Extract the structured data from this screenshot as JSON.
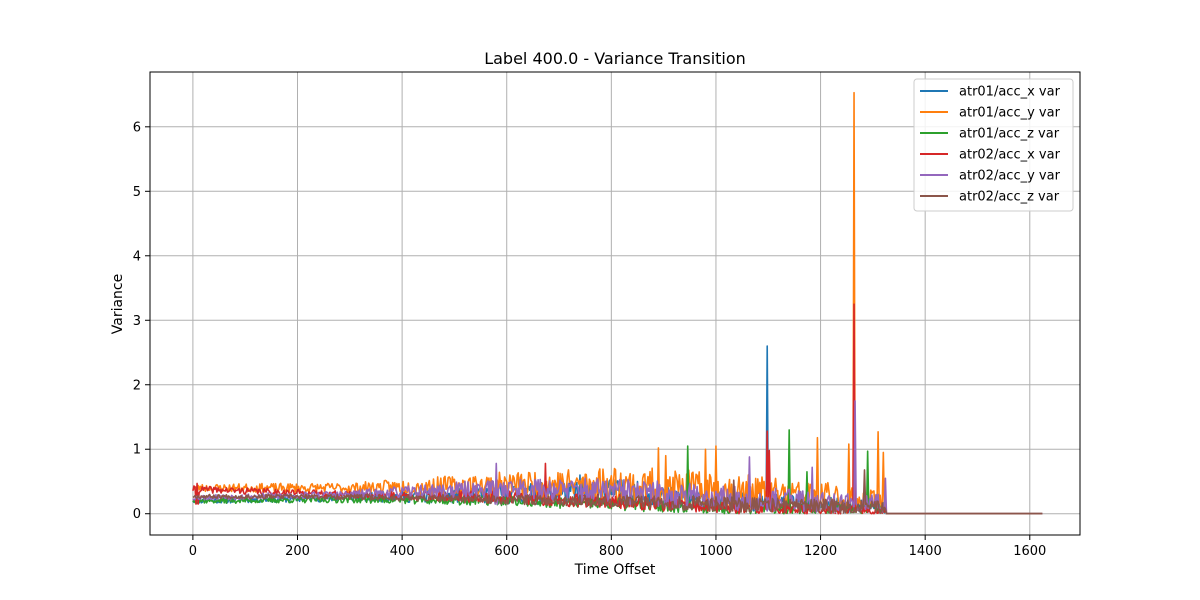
{
  "chart_data": {
    "type": "line",
    "title": "Label 400.0 - Variance Transition",
    "xlabel": "Time Offset",
    "ylabel": "Variance",
    "xlim": [
      -82,
      1696
    ],
    "ylim": [
      -0.33,
      6.85
    ],
    "xticks": [
      0,
      200,
      400,
      600,
      800,
      1000,
      1200,
      1400,
      1600
    ],
    "yticks": [
      0,
      1,
      2,
      3,
      4,
      5,
      6
    ],
    "grid": true,
    "legend_position": "top-right",
    "x_end": 1625,
    "noise_cutoff": 1325,
    "series": [
      {
        "name": "atr01/acc_x var",
        "color": "#1f77b4",
        "seed": 11,
        "envelope": [
          [
            0,
            0.2
          ],
          [
            300,
            0.25
          ],
          [
            600,
            0.3
          ],
          [
            800,
            0.35
          ],
          [
            1000,
            0.2
          ],
          [
            1325,
            0.1
          ]
        ],
        "noise": [
          [
            0,
            0.04
          ],
          [
            300,
            0.06
          ],
          [
            600,
            0.15
          ],
          [
            800,
            0.2
          ],
          [
            1000,
            0.15
          ],
          [
            1325,
            0.1
          ]
        ],
        "spikes": [
          [
            740,
            0.6
          ],
          [
            1098,
            2.6
          ]
        ]
      },
      {
        "name": "atr01/acc_y var",
        "color": "#ff7f0e",
        "seed": 23,
        "envelope": [
          [
            0,
            0.4
          ],
          [
            300,
            0.4
          ],
          [
            600,
            0.45
          ],
          [
            800,
            0.45
          ],
          [
            1000,
            0.35
          ],
          [
            1325,
            0.2
          ]
        ],
        "noise": [
          [
            0,
            0.06
          ],
          [
            300,
            0.08
          ],
          [
            600,
            0.2
          ],
          [
            800,
            0.3
          ],
          [
            1000,
            0.3
          ],
          [
            1325,
            0.2
          ]
        ],
        "spikes": [
          [
            890,
            1.02
          ],
          [
            905,
            0.9
          ],
          [
            980,
            1.0
          ],
          [
            1000,
            1.05
          ],
          [
            1195,
            1.18
          ],
          [
            1255,
            1.08
          ],
          [
            1265,
            6.53
          ],
          [
            1310,
            1.27
          ],
          [
            1320,
            0.95
          ]
        ]
      },
      {
        "name": "atr01/acc_z var",
        "color": "#2ca02c",
        "seed": 37,
        "envelope": [
          [
            0,
            0.2
          ],
          [
            300,
            0.22
          ],
          [
            600,
            0.2
          ],
          [
            800,
            0.15
          ],
          [
            1000,
            0.1
          ],
          [
            1325,
            0.08
          ]
        ],
        "noise": [
          [
            0,
            0.04
          ],
          [
            300,
            0.05
          ],
          [
            600,
            0.08
          ],
          [
            800,
            0.1
          ],
          [
            1000,
            0.1
          ],
          [
            1325,
            0.08
          ]
        ],
        "spikes": [
          [
            947,
            1.05
          ],
          [
            1140,
            1.3
          ],
          [
            1175,
            0.65
          ],
          [
            1290,
            0.97
          ]
        ]
      },
      {
        "name": "atr02/acc_x var",
        "color": "#d62728",
        "seed": 41,
        "envelope": [
          [
            0,
            0.38
          ],
          [
            300,
            0.3
          ],
          [
            600,
            0.25
          ],
          [
            800,
            0.2
          ],
          [
            1000,
            0.1
          ],
          [
            1325,
            0.05
          ]
        ],
        "noise": [
          [
            0,
            0.05
          ],
          [
            300,
            0.05
          ],
          [
            600,
            0.1
          ],
          [
            800,
            0.12
          ],
          [
            1000,
            0.1
          ],
          [
            1325,
            0.06
          ]
        ],
        "spikes": [
          [
            8,
            0.47
          ],
          [
            675,
            0.78
          ],
          [
            1098,
            1.28
          ],
          [
            1102,
            0.98
          ],
          [
            1265,
            3.25
          ]
        ]
      },
      {
        "name": "atr02/acc_y var",
        "color": "#9467bd",
        "seed": 53,
        "envelope": [
          [
            0,
            0.25
          ],
          [
            300,
            0.3
          ],
          [
            600,
            0.4
          ],
          [
            800,
            0.35
          ],
          [
            1000,
            0.25
          ],
          [
            1325,
            0.15
          ]
        ],
        "noise": [
          [
            0,
            0.04
          ],
          [
            300,
            0.06
          ],
          [
            600,
            0.15
          ],
          [
            800,
            0.2
          ],
          [
            1000,
            0.2
          ],
          [
            1325,
            0.15
          ]
        ],
        "spikes": [
          [
            580,
            0.78
          ],
          [
            1065,
            0.88
          ],
          [
            1185,
            0.72
          ],
          [
            1267,
            1.75
          ],
          [
            1325,
            0.55
          ]
        ]
      },
      {
        "name": "atr02/acc_z var",
        "color": "#8c564b",
        "seed": 67,
        "envelope": [
          [
            0,
            0.27
          ],
          [
            300,
            0.26
          ],
          [
            600,
            0.22
          ],
          [
            800,
            0.2
          ],
          [
            1000,
            0.15
          ],
          [
            1325,
            0.1
          ]
        ],
        "noise": [
          [
            0,
            0.03
          ],
          [
            300,
            0.04
          ],
          [
            600,
            0.07
          ],
          [
            800,
            0.1
          ],
          [
            1000,
            0.12
          ],
          [
            1325,
            0.1
          ]
        ],
        "spikes": [
          [
            1035,
            0.52
          ],
          [
            1285,
            0.68
          ]
        ]
      }
    ]
  }
}
